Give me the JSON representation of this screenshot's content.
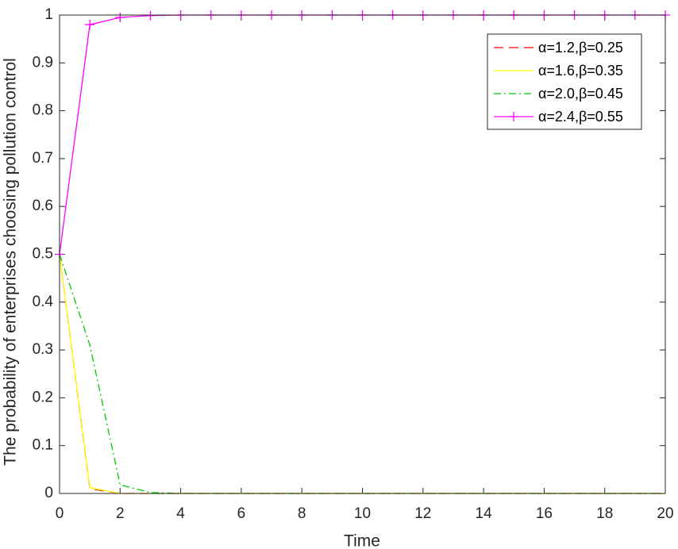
{
  "chart_data": {
    "type": "line",
    "xlabel": "Time",
    "ylabel": "The probability of enterprises choosing pollution control",
    "x": [
      0,
      1,
      2,
      3,
      4,
      5,
      6,
      7,
      8,
      9,
      10,
      11,
      12,
      13,
      14,
      15,
      16,
      17,
      18,
      19,
      20
    ],
    "series": [
      {
        "name": "α=1.2,β=0.25",
        "color": "#ff0000",
        "linestyle": "dashed",
        "values": [
          0.5,
          0.01,
          0,
          0,
          0,
          0,
          0,
          0,
          0,
          0,
          0,
          0,
          0,
          0,
          0,
          0,
          0,
          0,
          0,
          0,
          0
        ]
      },
      {
        "name": "α=1.6,β=0.35",
        "color": "#ffff00",
        "linestyle": "solid",
        "values": [
          0.5,
          0.012,
          0,
          0,
          0,
          0,
          0,
          0,
          0,
          0,
          0,
          0,
          0,
          0,
          0,
          0,
          0,
          0,
          0,
          0,
          0
        ]
      },
      {
        "name": "α=2.0,β=0.45",
        "color": "#00cc00",
        "linestyle": "dashdot",
        "values": [
          0.5,
          0.31,
          0.018,
          0.002,
          0,
          0,
          0,
          0,
          0,
          0,
          0,
          0,
          0,
          0,
          0,
          0,
          0,
          0,
          0,
          0,
          0
        ]
      },
      {
        "name": "α=2.4,β=0.55",
        "color": "#ff00ff",
        "linestyle": "solid",
        "marker": "+",
        "values": [
          0.5,
          0.98,
          0.995,
          0.999,
          1,
          1,
          1,
          1,
          1,
          1,
          1,
          1,
          1,
          1,
          1,
          1,
          1,
          1,
          1,
          1,
          1
        ]
      }
    ],
    "xlim": [
      0,
      20
    ],
    "xticks": [
      0,
      2,
      4,
      6,
      8,
      10,
      12,
      14,
      16,
      18,
      20
    ],
    "ylim": [
      0,
      1
    ],
    "yticks": [
      0,
      0.1,
      0.2,
      0.3,
      0.4,
      0.5,
      0.6,
      0.7,
      0.8,
      0.9,
      1
    ],
    "grid": false,
    "legend": "upper right"
  }
}
